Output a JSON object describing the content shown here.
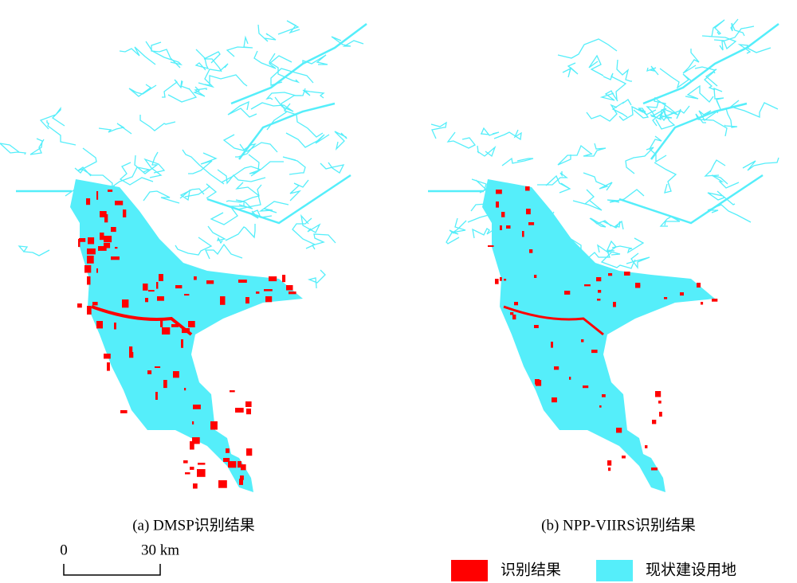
{
  "panels": [
    {
      "caption": "(a) DMSP识别结果"
    },
    {
      "caption": "(b) NPP-VIIRS识别结果"
    }
  ],
  "scale_bar": {
    "labels": [
      "0",
      "30 km"
    ]
  },
  "legend": {
    "items": [
      {
        "label": "识别结果",
        "color": "#ff0000"
      },
      {
        "label": "现状建设用地",
        "color": "#55eefa"
      }
    ]
  }
}
